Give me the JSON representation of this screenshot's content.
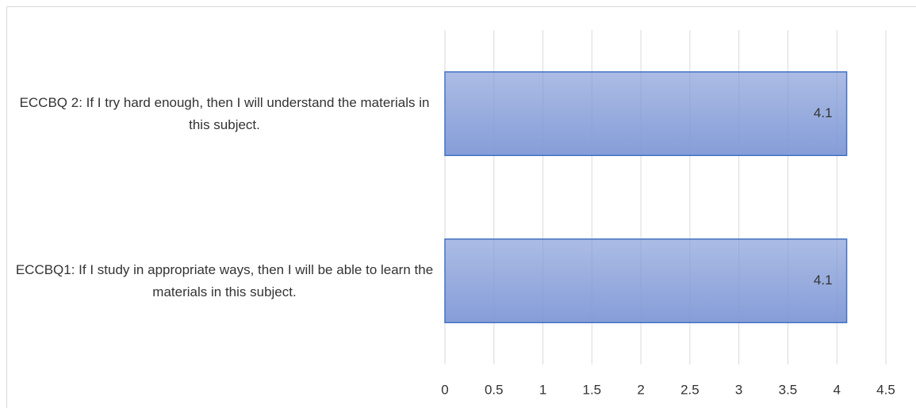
{
  "chart_data": {
    "type": "bar",
    "orientation": "horizontal",
    "categories": [
      "ECCBQ1: If I study in appropriate ways, then I will be able to learn the materials in this subject.",
      "ECCBQ 2: If I try hard enough, then I will understand the materials in this subject."
    ],
    "values": [
      4.1,
      4.1
    ],
    "color": "#7f98d6",
    "edge_color": "#4472c4",
    "xlim": [
      0,
      4.5
    ],
    "xticks": [
      0,
      0.5,
      1,
      1.5,
      2,
      2.5,
      3,
      3.5,
      4,
      4.5
    ],
    "grid": true
  }
}
